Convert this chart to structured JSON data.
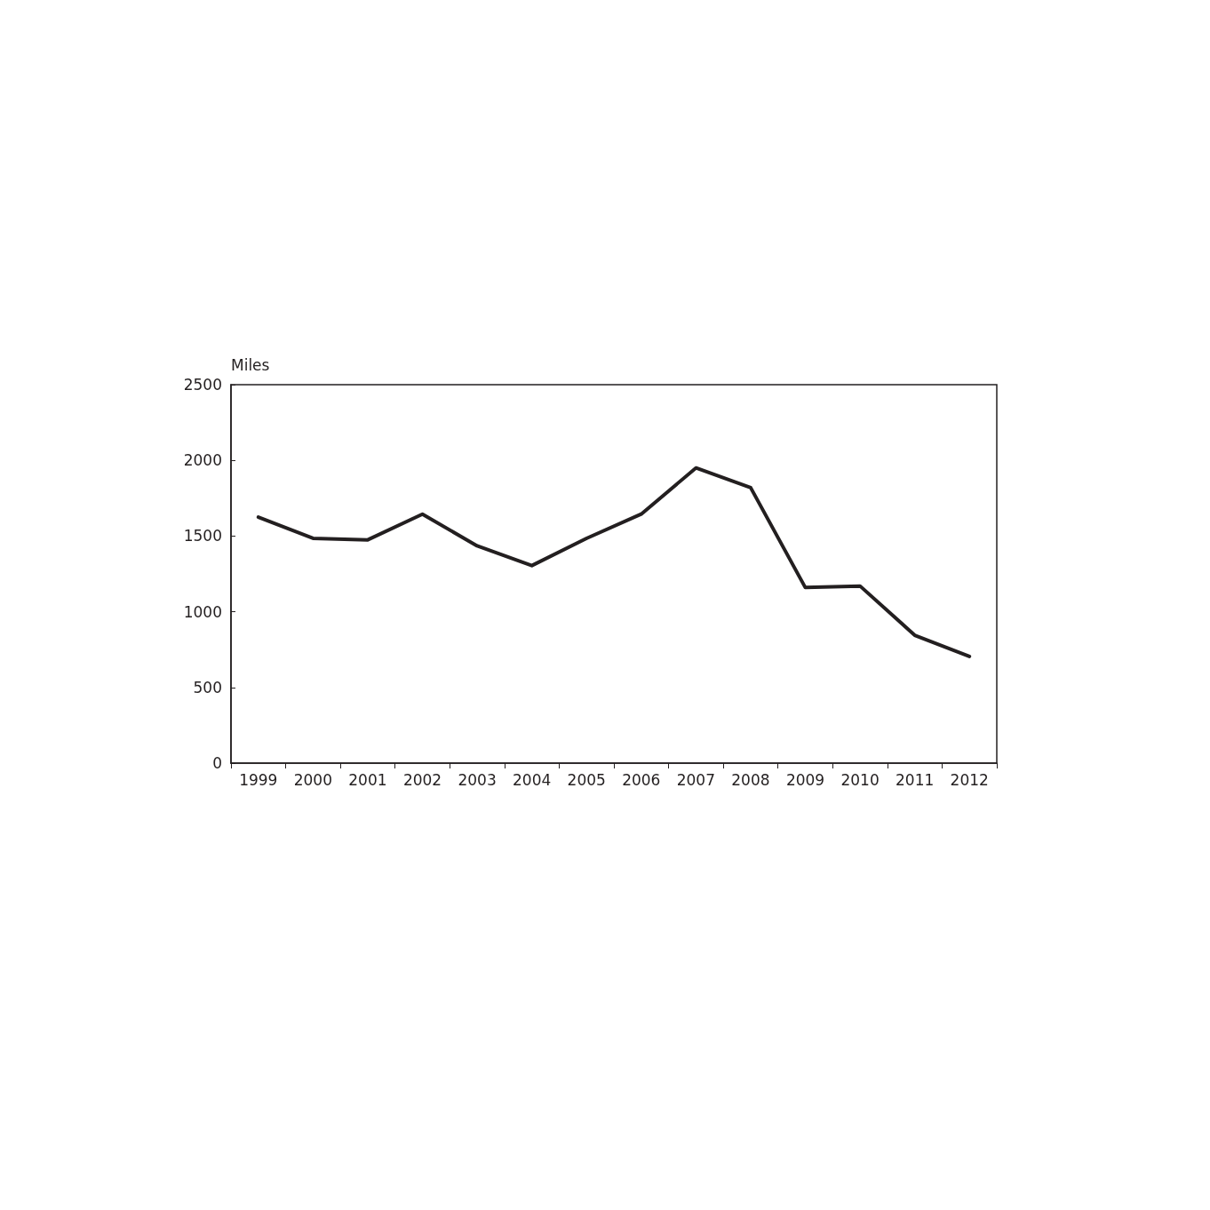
{
  "chart_data": {
    "type": "line",
    "ylabel": "Miles",
    "categories": [
      "1999",
      "2000",
      "2001",
      "2002",
      "2003",
      "2004",
      "2005",
      "2006",
      "2007",
      "2008",
      "2009",
      "2010",
      "2011",
      "2012"
    ],
    "series": [
      {
        "color": "#231f20",
        "values": [
          1625,
          1485,
          1475,
          1645,
          1435,
          1305,
          1485,
          1645,
          1950,
          1820,
          1160,
          1170,
          845,
          705
        ]
      }
    ],
    "ylim": [
      0,
      2500
    ],
    "yticks": [
      0,
      500,
      1000,
      1500,
      2000,
      2500
    ],
    "grid": false,
    "marker": "none",
    "line_style": "solid"
  }
}
